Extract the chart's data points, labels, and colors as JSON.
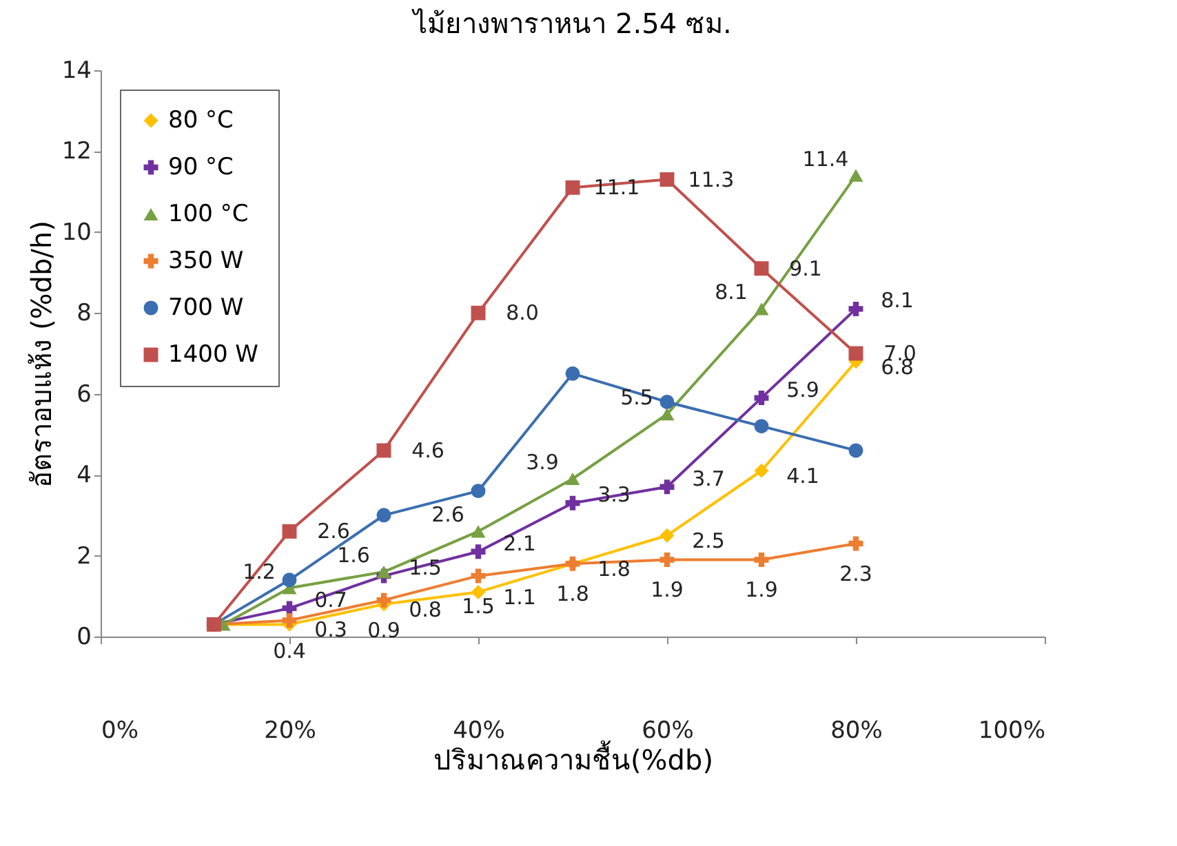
{
  "chart_data": {
    "type": "line",
    "title": "ไม้ยางพาราหนา 2.54 ซม.",
    "xlabel": "ปริมาณความชื้น(%db)",
    "ylabel": "อัตราอบแห้ง (%db/h)",
    "xlim": [
      0,
      100
    ],
    "xticks": [
      {
        "value": 0,
        "label": "0%"
      },
      {
        "value": 20,
        "label": "20%"
      },
      {
        "value": 40,
        "label": "40%"
      },
      {
        "value": 60,
        "label": "60%"
      },
      {
        "value": 80,
        "label": "80%"
      },
      {
        "value": 100,
        "label": "100%"
      }
    ],
    "ylim": [
      0,
      14
    ],
    "yticks": [
      0,
      2,
      4,
      6,
      8,
      10,
      12,
      14
    ],
    "grid": false,
    "legend": "top left",
    "line_style": "solid",
    "series": [
      {
        "name": "80 °C",
        "color": "#ffc000",
        "marker": "diamond",
        "x": [
          12,
          20,
          30,
          40,
          50,
          60,
          70,
          80
        ],
        "values": [
          0.3,
          0.3,
          0.8,
          1.1,
          1.8,
          2.5,
          4.1,
          6.8
        ],
        "value_labels": [
          null,
          "0.3",
          "0.8",
          "1.1",
          "1.8",
          "2.5",
          "4.1",
          "6.8"
        ]
      },
      {
        "name": "90 °C",
        "color": "#7030a0",
        "marker": "cross",
        "x": [
          12,
          20,
          30,
          40,
          50,
          60,
          70,
          80
        ],
        "values": [
          0.3,
          0.7,
          1.5,
          2.1,
          3.3,
          3.7,
          5.9,
          8.1
        ],
        "value_labels": [
          null,
          "0.7",
          "1.5",
          "2.1",
          "3.3",
          "3.7",
          "5.9",
          "8.1"
        ]
      },
      {
        "name": "100 °C",
        "color": "#77a043",
        "marker": "triangle",
        "x": [
          13,
          20,
          30,
          40,
          50,
          60,
          70,
          80
        ],
        "values": [
          0.3,
          1.2,
          1.6,
          2.6,
          3.9,
          5.5,
          8.1,
          11.4
        ],
        "value_labels": [
          null,
          "1.2",
          "1.6",
          "2.6",
          "3.9",
          "5.5",
          "8.1",
          "11.4"
        ]
      },
      {
        "name": "350 W",
        "color": "#ed7d31",
        "marker": "cross",
        "x": [
          12,
          20,
          30,
          40,
          50,
          60,
          70,
          80
        ],
        "values": [
          0.3,
          0.4,
          0.9,
          1.5,
          1.8,
          1.9,
          1.9,
          2.3
        ],
        "value_labels": [
          null,
          "0.4",
          "0.9",
          "1.5",
          "1.8",
          "1.9",
          "1.9",
          "2.3"
        ]
      },
      {
        "name": "700 W",
        "color": "#3a6eb0",
        "marker": "circle",
        "x": [
          12,
          20,
          30,
          40,
          50,
          60,
          70,
          80
        ],
        "values": [
          0.3,
          1.4,
          3.0,
          3.6,
          6.5,
          5.8,
          5.2,
          4.6
        ]
      },
      {
        "name": "1400 W",
        "color": "#c0504d",
        "marker": "square",
        "x": [
          12,
          20,
          30,
          40,
          50,
          60,
          70,
          80
        ],
        "values": [
          0.3,
          2.6,
          4.6,
          8.0,
          11.1,
          11.3,
          9.1,
          7.0
        ],
        "value_labels": [
          null,
          "2.6",
          "4.6",
          "8.0",
          "11.1",
          "11.3",
          "9.1",
          "7.0"
        ]
      }
    ]
  }
}
